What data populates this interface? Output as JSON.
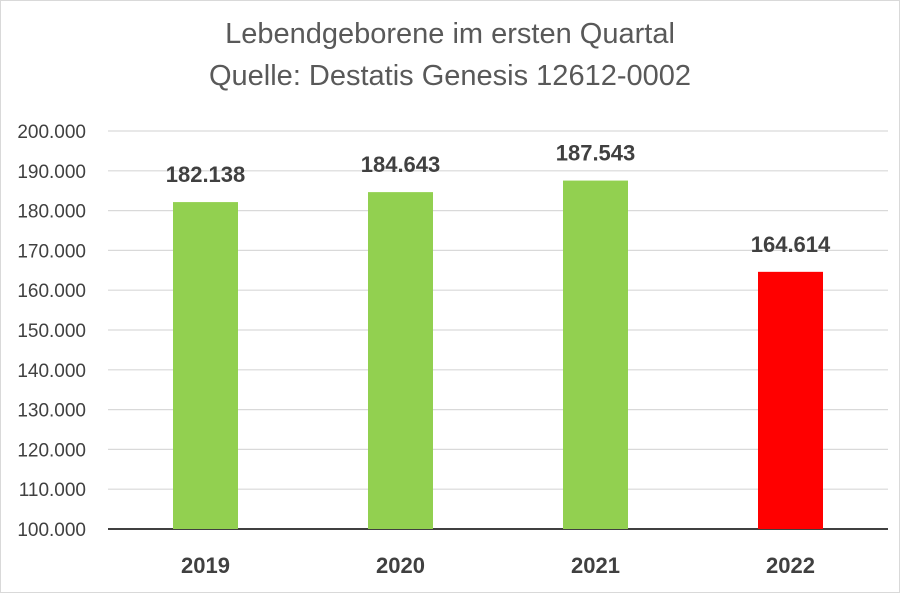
{
  "chart_data": {
    "type": "bar",
    "title": "Lebendgeborene im ersten Quartal",
    "subtitle": "Quelle: Destatis Genesis 12612-0002",
    "categories": [
      "2019",
      "2020",
      "2021",
      "2022"
    ],
    "values": [
      182138,
      184643,
      187543,
      164614
    ],
    "value_labels": [
      "182.138",
      "184.643",
      "187.543",
      "164.614"
    ],
    "bar_colors": [
      "#92d050",
      "#92d050",
      "#92d050",
      "#ff0000"
    ],
    "ylim": [
      100000,
      200000
    ],
    "yticks": [
      100000,
      110000,
      120000,
      130000,
      140000,
      150000,
      160000,
      170000,
      180000,
      190000,
      200000
    ],
    "ytick_labels": [
      "100.000",
      "110.000",
      "120.000",
      "130.000",
      "140.000",
      "150.000",
      "160.000",
      "170.000",
      "180.000",
      "190.000",
      "200.000"
    ],
    "grid": true,
    "legend": "none"
  }
}
